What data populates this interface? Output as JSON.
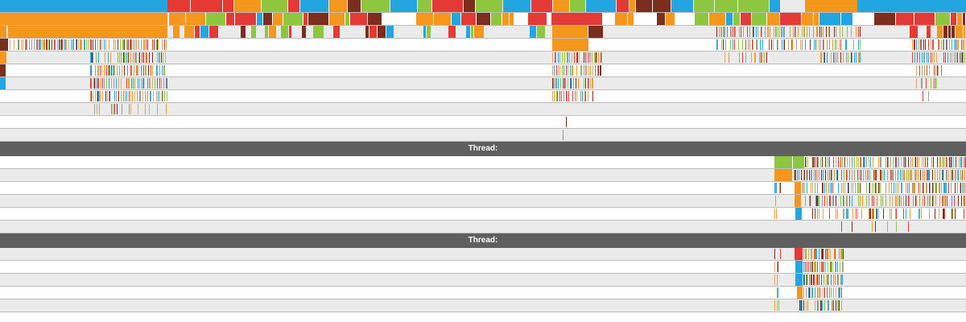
{
  "palette": {
    "blue": "#22a5e0",
    "orange": "#f5961d",
    "green": "#8dc63f",
    "red": "#e53935",
    "brown": "#7b2d1e",
    "tan": "#d9a96b",
    "gray": "#9e9e9e",
    "row_alt": "#ebebeb",
    "row_line": "#bdbdbd",
    "header": "#5f5f5f"
  },
  "threads": [
    {
      "header_label": "",
      "row_count": 11
    },
    {
      "header_label": "Thread:",
      "row_count": 6
    },
    {
      "header_label": "Thread:",
      "row_count": 5
    }
  ]
}
